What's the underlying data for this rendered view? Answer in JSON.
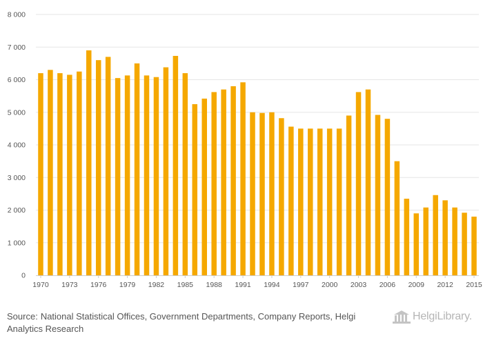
{
  "chart_data": {
    "type": "bar",
    "title": "",
    "xlabel": "",
    "ylabel": "",
    "ylim": [
      0,
      8000
    ],
    "yticks": [
      0,
      1000,
      2000,
      3000,
      4000,
      5000,
      6000,
      7000,
      8000
    ],
    "ytick_labels": [
      "0",
      "1 000",
      "2 000",
      "3 000",
      "4 000",
      "5 000",
      "6 000",
      "7 000",
      "8 000"
    ],
    "xtick_labels": [
      "1970",
      "1973",
      "1976",
      "1979",
      "1982",
      "1985",
      "1988",
      "1991",
      "1994",
      "1997",
      "2000",
      "2003",
      "2006",
      "2009",
      "2012",
      "2015"
    ],
    "grid": true,
    "bar_color": "#f5a800",
    "categories": [
      1970,
      1971,
      1972,
      1973,
      1974,
      1975,
      1976,
      1977,
      1978,
      1979,
      1980,
      1981,
      1982,
      1983,
      1984,
      1985,
      1986,
      1987,
      1988,
      1989,
      1990,
      1991,
      1992,
      1993,
      1994,
      1995,
      1996,
      1997,
      1998,
      1999,
      2000,
      2001,
      2002,
      2003,
      2004,
      2005,
      2006,
      2007,
      2008,
      2009,
      2010,
      2011,
      2012,
      2013,
      2014,
      2015
    ],
    "values": [
      6200,
      6300,
      6200,
      6150,
      6250,
      6900,
      6600,
      6700,
      6050,
      6130,
      6500,
      6130,
      6080,
      6380,
      6730,
      6200,
      5250,
      5420,
      5620,
      5700,
      5800,
      5920,
      5000,
      4980,
      5000,
      4820,
      4560,
      4500,
      4500,
      4500,
      4500,
      4500,
      4900,
      5620,
      5700,
      4920,
      4800,
      3500,
      2350,
      1900,
      2080,
      2460,
      2300,
      2080,
      1920,
      1800
    ]
  },
  "footer": {
    "source_label": "Source:",
    "source_text": "National Statistical Offices, Government Departments, Company Reports, Helgi Analytics Research",
    "logo_text": "HelgiLibrary."
  }
}
